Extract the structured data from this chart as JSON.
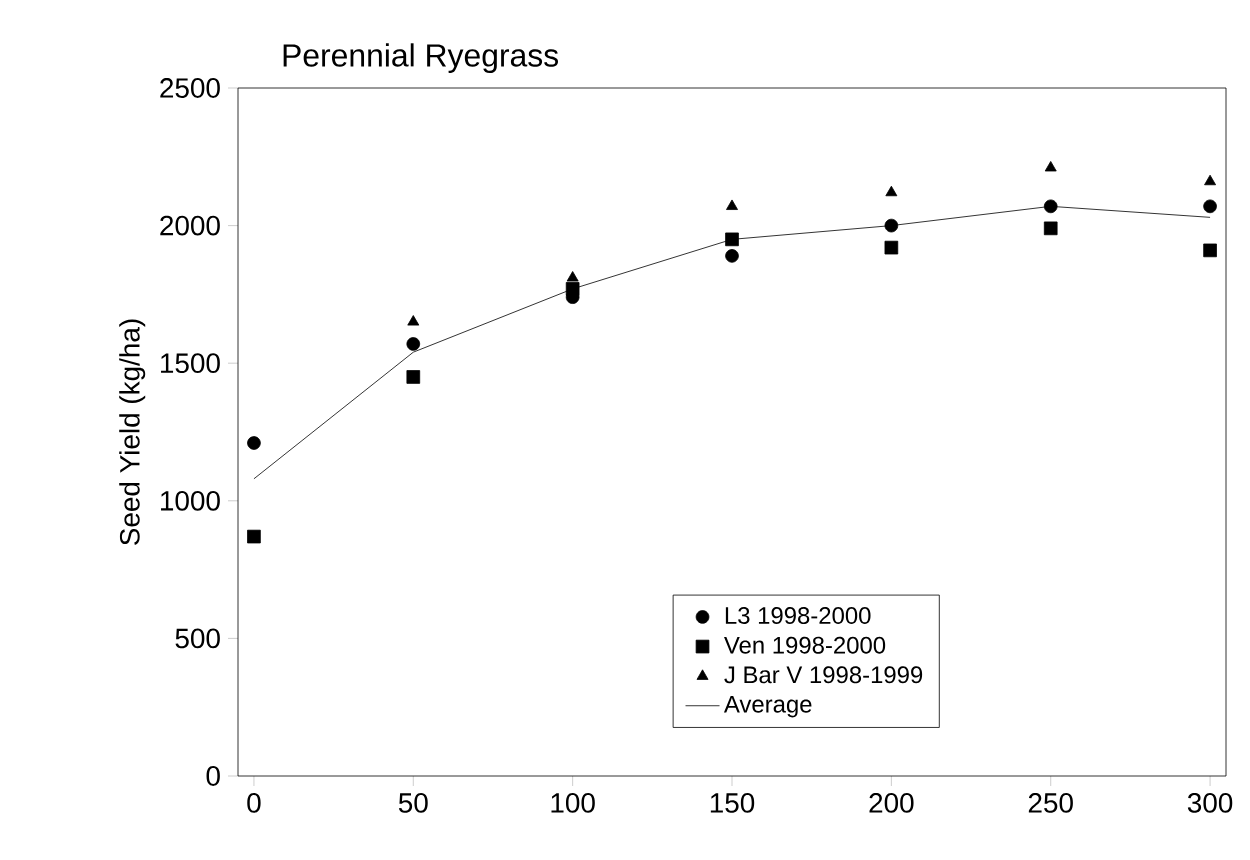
{
  "chart_data": {
    "type": "scatter",
    "title": "Perennial Ryegrass",
    "ylabel": "Seed Yield (kg/ha)",
    "x": [
      0,
      50,
      100,
      150,
      200,
      250,
      300
    ],
    "series": [
      {
        "name": "L3 1998-2000",
        "color": "#000000",
        "marker": "circle",
        "values": [
          1210,
          1570,
          1740,
          1890,
          2000,
          2070,
          2070
        ]
      },
      {
        "name": "Ven 1998-2000",
        "color": "#000000",
        "marker": "square",
        "values": [
          870,
          1450,
          1770,
          1950,
          1920,
          1990,
          1910
        ]
      },
      {
        "name": "J Bar V 1998-1999",
        "color": "#000000",
        "marker": "triangle",
        "values": [
          null,
          1650,
          1810,
          2070,
          2120,
          2210,
          2160
        ]
      },
      {
        "name": "Average",
        "type": "line",
        "color": "#000000",
        "marker": "none",
        "values": [
          1080,
          1540,
          1770,
          1950,
          2000,
          2070,
          2030
        ]
      }
    ],
    "xlim": [
      -5,
      305
    ],
    "xticks": [
      0,
      50,
      100,
      150,
      200,
      250,
      300
    ],
    "ylim": [
      0,
      2500
    ],
    "yticks": [
      0,
      500,
      1000,
      1500,
      2000,
      2500
    ],
    "grid": false,
    "legend": "bottom right"
  }
}
